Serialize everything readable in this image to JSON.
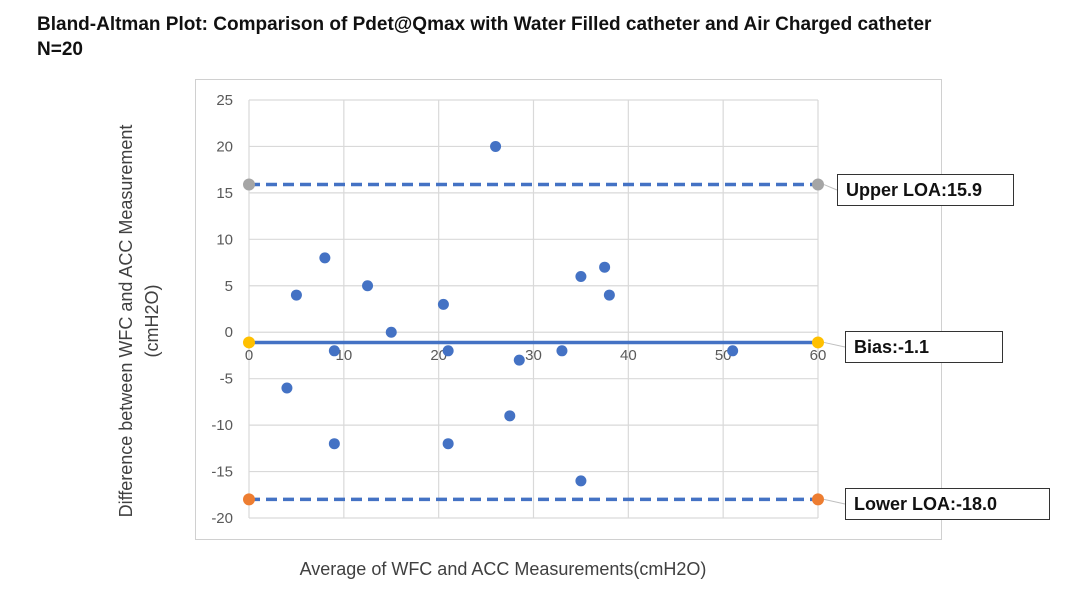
{
  "title": {
    "line1": "Bland-Altman Plot: Comparison of Pdet@Qmax with Water Filled catheter and Air Charged catheter",
    "line2": "N=20"
  },
  "chart_data": {
    "type": "scatter",
    "title": "Bland-Altman Plot: Comparison of Pdet@Qmax with Water Filled catheter and Air Charged catheter N=20",
    "xlabel": "Average of WFC and ACC Measurements(cmH2O)",
    "ylabel_line1": "Difference between WFC and ACC Measurement",
    "ylabel_line2": "(cmH2O)",
    "xlim": [
      0,
      60
    ],
    "ylim": [
      -20,
      25
    ],
    "x_ticks": [
      0,
      10,
      20,
      30,
      40,
      50,
      60
    ],
    "y_ticks": [
      25,
      20,
      15,
      10,
      5,
      0,
      -5,
      -10,
      -15,
      -20
    ],
    "grid": true,
    "points": [
      {
        "x": 4,
        "y": -6
      },
      {
        "x": 5,
        "y": 4
      },
      {
        "x": 8,
        "y": 8
      },
      {
        "x": 9,
        "y": -2
      },
      {
        "x": 9,
        "y": -12
      },
      {
        "x": 12.5,
        "y": 5
      },
      {
        "x": 15,
        "y": 0
      },
      {
        "x": 20.5,
        "y": 3
      },
      {
        "x": 21,
        "y": -2
      },
      {
        "x": 21,
        "y": -12
      },
      {
        "x": 26,
        "y": 20
      },
      {
        "x": 27.5,
        "y": -9
      },
      {
        "x": 28.5,
        "y": -3
      },
      {
        "x": 33,
        "y": -2
      },
      {
        "x": 35,
        "y": 6
      },
      {
        "x": 35,
        "y": -16
      },
      {
        "x": 37.5,
        "y": 7
      },
      {
        "x": 38,
        "y": 4
      },
      {
        "x": 51,
        "y": -2
      }
    ],
    "lines": [
      {
        "name": "Upper LOA",
        "y": 15.9,
        "style": "dashed",
        "label": "Upper LOA:15.9",
        "endpoint_color": "#a5a5a5"
      },
      {
        "name": "Bias",
        "y": -1.1,
        "style": "solid",
        "label": "Bias:-1.1",
        "endpoint_color": "#ffc000"
      },
      {
        "name": "Lower LOA",
        "y": -18.0,
        "style": "dashed",
        "label": "Lower LOA:-18.0",
        "endpoint_color": "#ed7d31"
      }
    ],
    "colors": {
      "points": "#4472c4",
      "lines": "#4472c4",
      "grid": "#d9d9d9"
    }
  }
}
